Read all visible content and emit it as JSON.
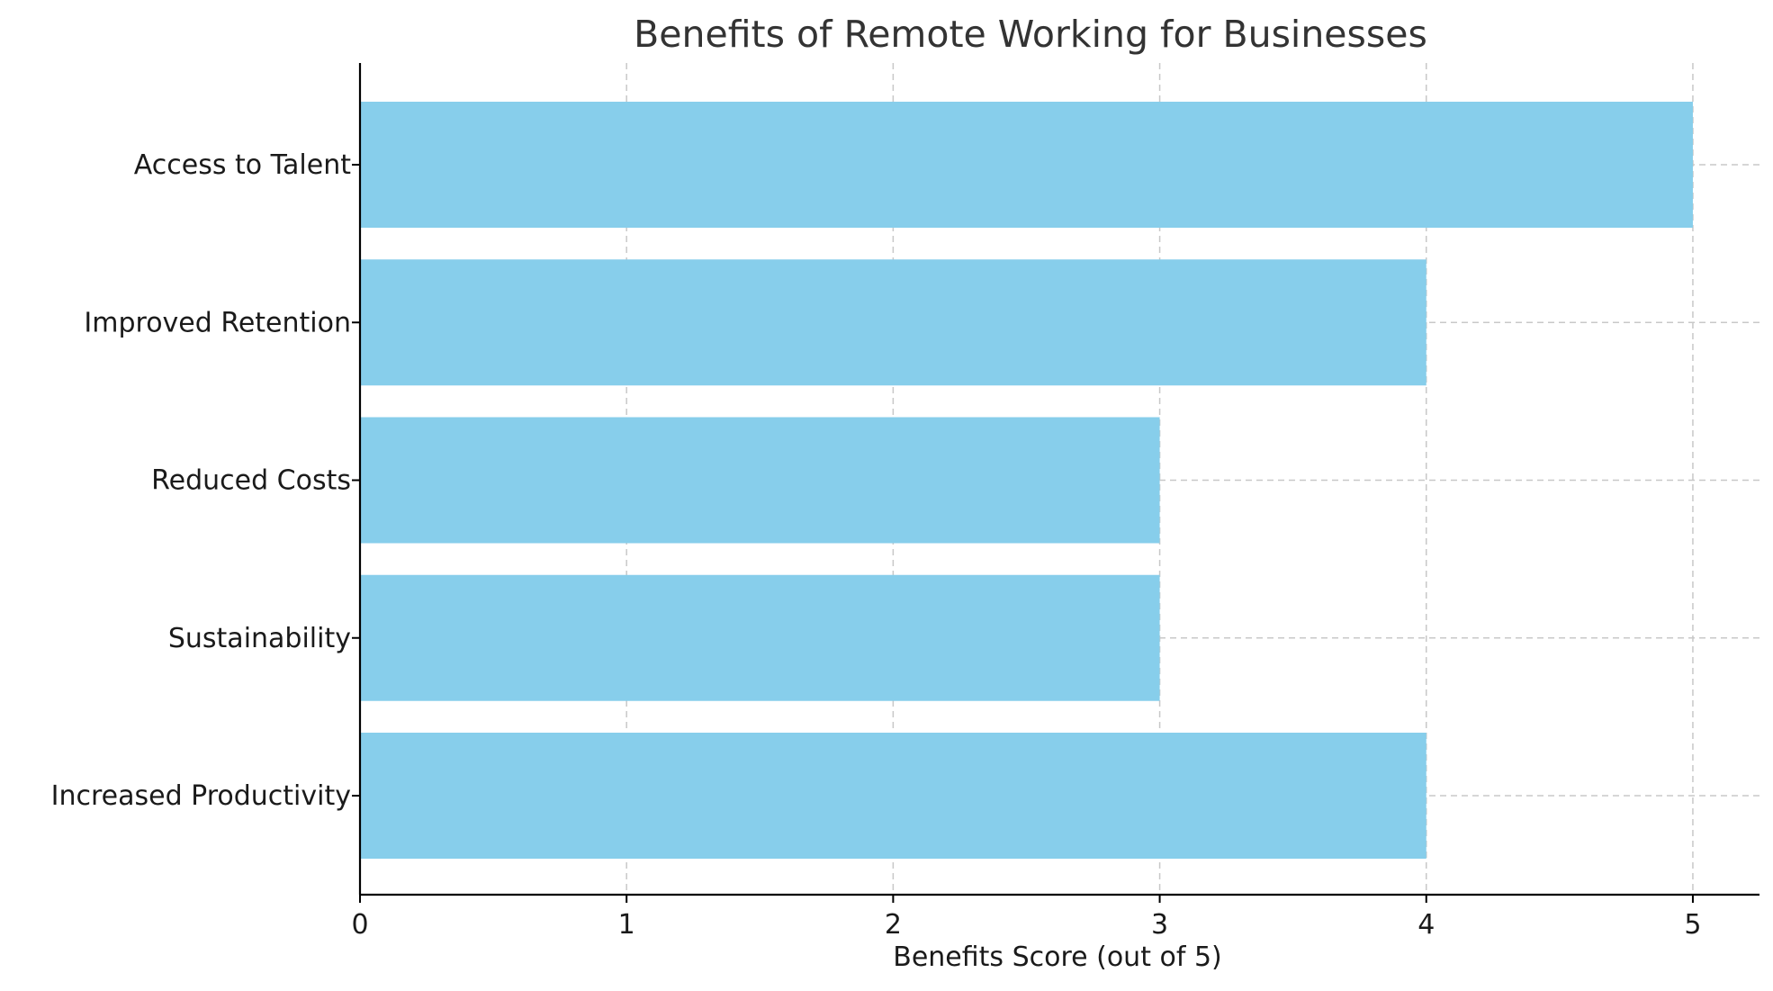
{
  "chart_data": {
    "type": "bar",
    "orientation": "horizontal",
    "title": "Benefits of Remote Working for Businesses",
    "xlabel": "Benefits Score (out of 5)",
    "ylabel": "",
    "categories": [
      "Increased Productivity",
      "Sustainability",
      "Reduced Costs",
      "Improved Retention",
      "Access to Talent"
    ],
    "values": [
      4,
      3,
      3,
      4,
      5
    ],
    "xlim": [
      0,
      5.25
    ],
    "xticks": [
      0,
      1,
      2,
      3,
      4,
      5
    ],
    "grid": true,
    "bar_color": "#87CEEB"
  }
}
